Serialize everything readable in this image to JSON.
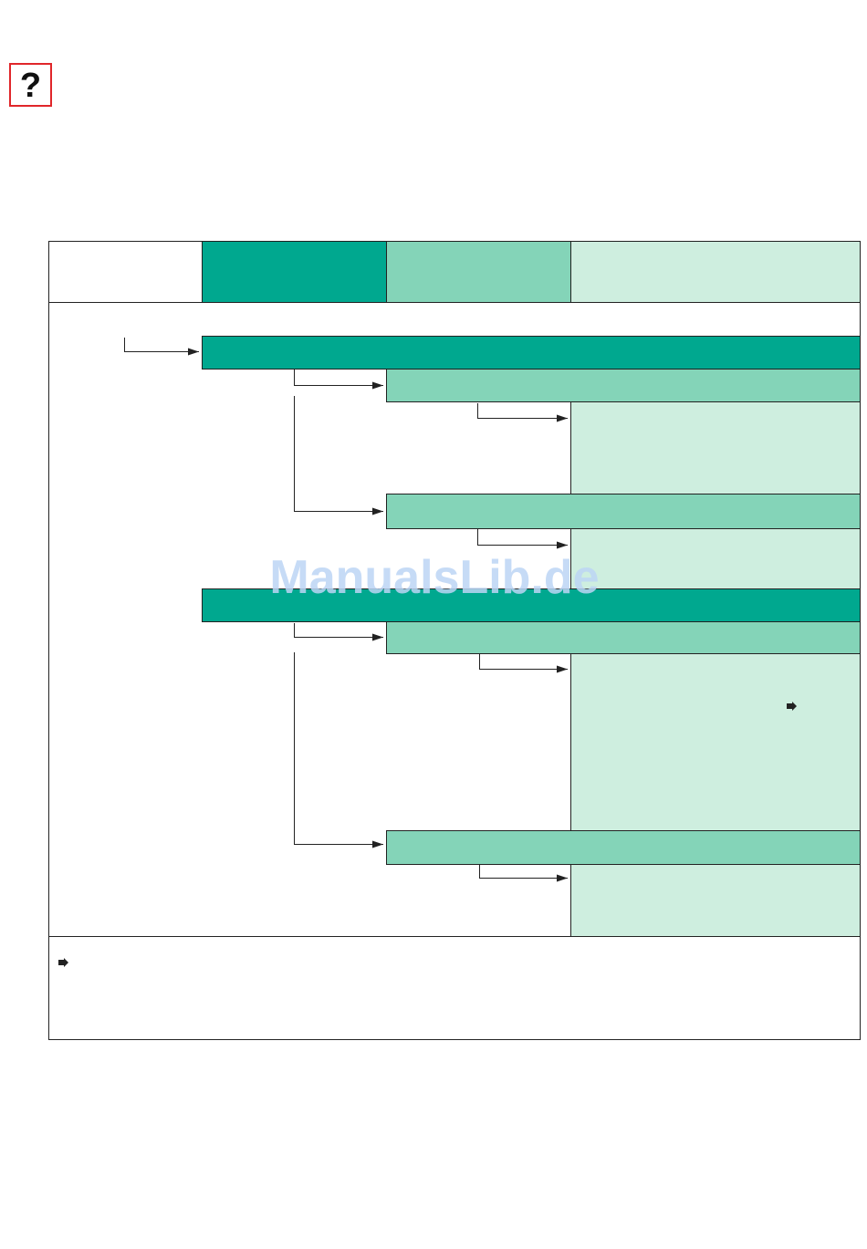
{
  "help_icon": {
    "label": "?"
  },
  "watermark": {
    "text": "ManualsLib.de"
  }
}
